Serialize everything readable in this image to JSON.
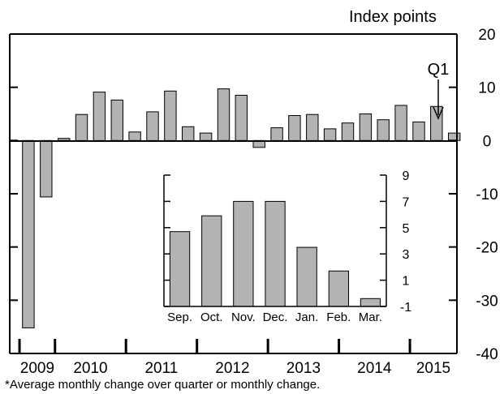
{
  "chart_data": [
    {
      "type": "bar",
      "unit_label": "Index points",
      "footnote": "*Average monthly change over quarter or monthly change.",
      "annotation": "Q1",
      "ylim": [
        -40,
        20
      ],
      "yticks": [
        "20",
        "10",
        "0",
        "-10",
        "-20",
        "-30",
        "-40"
      ],
      "ytick_values": [
        20,
        10,
        0,
        -10,
        -20,
        -30,
        -40
      ],
      "year_labels": [
        "2009",
        "2010",
        "2011",
        "2012",
        "2013",
        "2014",
        "2015"
      ],
      "annotated_index": 24,
      "values": [
        -35.2,
        -10.6,
        0.4,
        4.9,
        9.1,
        7.6,
        1.6,
        5.4,
        9.3,
        2.6,
        1.4,
        9.7,
        8.5,
        -1.3,
        2.4,
        4.7,
        4.9,
        2.2,
        3.3,
        5.0,
        3.9,
        6.6,
        3.5,
        6.4,
        1.4
      ],
      "bar_color": "#b3b3b3",
      "grid": false
    },
    {
      "type": "bar",
      "categories": [
        "Sep.",
        "Oct.",
        "Nov.",
        "Dec.",
        "Jan.",
        "Feb.",
        "Mar."
      ],
      "values": [
        4.7,
        5.9,
        7.0,
        7.0,
        3.5,
        1.7,
        -0.4
      ],
      "ylim": [
        -1,
        9
      ],
      "yticks": [
        "9",
        "7",
        "5",
        "3",
        "1",
        "-1"
      ],
      "ytick_values": [
        9,
        7,
        5,
        3,
        1,
        -1
      ],
      "bar_color": "#b3b3b3",
      "grid": false
    }
  ]
}
